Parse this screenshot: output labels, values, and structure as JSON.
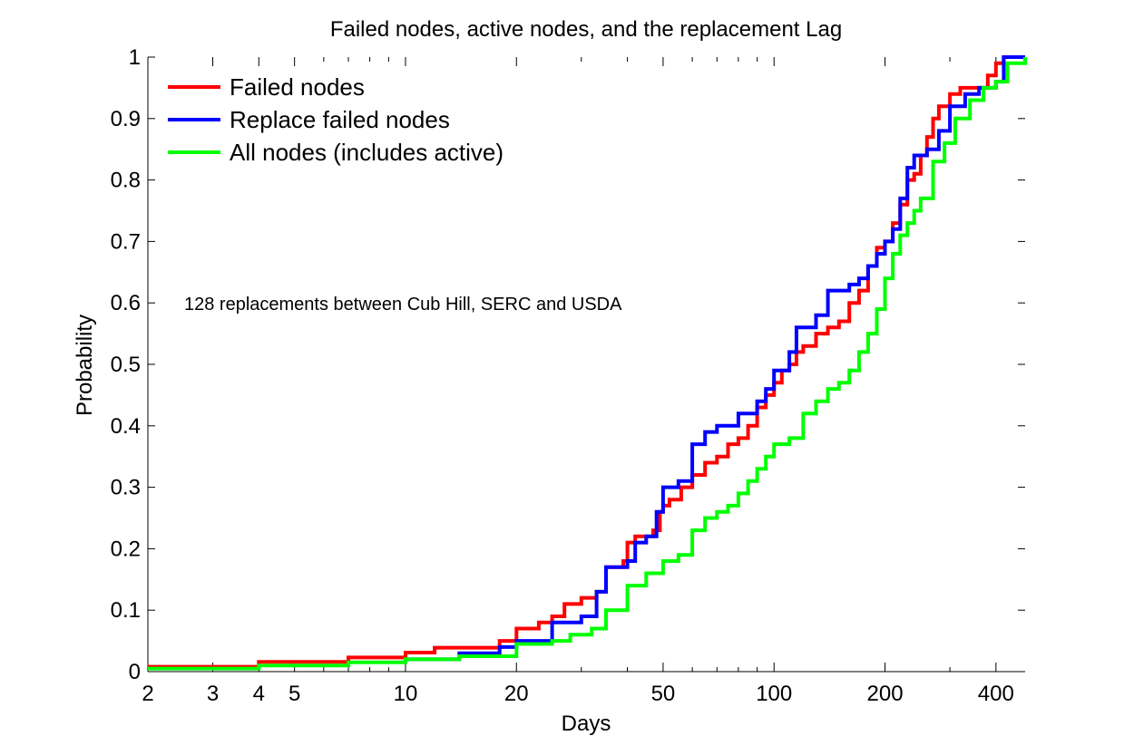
{
  "chart_data": {
    "type": "line",
    "title": "Failed nodes, active nodes, and the replacement Lag",
    "xlabel": "Days",
    "ylabel": "Probability",
    "xscale": "log",
    "xlim": [
      2,
      480
    ],
    "ylim": [
      0,
      1
    ],
    "xticks": [
      2,
      3,
      4,
      5,
      10,
      20,
      50,
      100,
      200,
      400
    ],
    "xtick_labels": [
      "2",
      "3",
      "4",
      "5",
      "10",
      "20",
      "50",
      "100",
      "200",
      "400"
    ],
    "yticks": [
      0,
      0.1,
      0.2,
      0.3,
      0.4,
      0.5,
      0.6,
      0.7,
      0.8,
      0.9,
      1
    ],
    "ytick_labels": [
      "0",
      "0.1",
      "0.2",
      "0.3",
      "0.4",
      "0.5",
      "0.6",
      "0.7",
      "0.8",
      "0.9",
      "1"
    ],
    "grid": false,
    "legend_position": "top-left",
    "annotation": "128 replacements between Cub Hill, SERC and USDA",
    "series": [
      {
        "name": "Failed nodes",
        "color": "#ff0000",
        "x": [
          2,
          4,
          7,
          10,
          12,
          18,
          20,
          23,
          25,
          27,
          30,
          33,
          35,
          39,
          40,
          42,
          47,
          49,
          50,
          52,
          56,
          60,
          65,
          70,
          75,
          80,
          85,
          90,
          95,
          100,
          105,
          110,
          115,
          120,
          130,
          140,
          150,
          160,
          170,
          180,
          190,
          200,
          210,
          220,
          230,
          240,
          250,
          260,
          270,
          280,
          300,
          320,
          350,
          380,
          400,
          420,
          480
        ],
        "y": [
          0.008,
          0.016,
          0.023,
          0.031,
          0.039,
          0.05,
          0.07,
          0.08,
          0.09,
          0.11,
          0.12,
          0.13,
          0.17,
          0.18,
          0.21,
          0.22,
          0.23,
          0.26,
          0.27,
          0.28,
          0.3,
          0.32,
          0.34,
          0.35,
          0.37,
          0.38,
          0.4,
          0.43,
          0.45,
          0.47,
          0.49,
          0.5,
          0.52,
          0.53,
          0.55,
          0.56,
          0.57,
          0.6,
          0.62,
          0.66,
          0.69,
          0.7,
          0.73,
          0.76,
          0.8,
          0.81,
          0.84,
          0.87,
          0.9,
          0.92,
          0.94,
          0.95,
          0.95,
          0.97,
          0.99,
          1.0,
          1.0
        ]
      },
      {
        "name": "Replace failed nodes",
        "color": "#0000ff",
        "x": [
          10,
          14,
          18,
          20,
          25,
          30,
          33,
          35,
          40,
          42,
          45,
          48,
          50,
          55,
          60,
          65,
          70,
          80,
          90,
          95,
          100,
          110,
          115,
          120,
          130,
          140,
          150,
          160,
          170,
          180,
          190,
          200,
          210,
          220,
          230,
          240,
          260,
          280,
          300,
          330,
          360,
          400,
          420,
          480
        ],
        "y": [
          0.02,
          0.03,
          0.04,
          0.05,
          0.08,
          0.09,
          0.13,
          0.17,
          0.18,
          0.21,
          0.22,
          0.26,
          0.3,
          0.31,
          0.37,
          0.39,
          0.4,
          0.42,
          0.44,
          0.46,
          0.49,
          0.52,
          0.56,
          0.56,
          0.58,
          0.62,
          0.62,
          0.63,
          0.64,
          0.66,
          0.68,
          0.7,
          0.72,
          0.77,
          0.82,
          0.84,
          0.85,
          0.88,
          0.92,
          0.94,
          0.95,
          0.96,
          1.0,
          1.0
        ]
      },
      {
        "name": "All nodes (includes active)",
        "color": "#00ff00",
        "x": [
          2,
          4,
          7,
          10,
          14,
          20,
          25,
          28,
          32,
          35,
          40,
          45,
          50,
          55,
          60,
          65,
          70,
          75,
          80,
          85,
          90,
          95,
          100,
          110,
          120,
          130,
          140,
          150,
          160,
          170,
          180,
          190,
          200,
          210,
          220,
          230,
          240,
          250,
          270,
          290,
          310,
          340,
          370,
          400,
          430,
          480
        ],
        "y": [
          0.005,
          0.01,
          0.015,
          0.02,
          0.025,
          0.045,
          0.05,
          0.06,
          0.07,
          0.1,
          0.14,
          0.16,
          0.18,
          0.19,
          0.23,
          0.25,
          0.26,
          0.27,
          0.29,
          0.31,
          0.33,
          0.35,
          0.37,
          0.38,
          0.42,
          0.44,
          0.46,
          0.47,
          0.49,
          0.52,
          0.55,
          0.59,
          0.64,
          0.68,
          0.71,
          0.73,
          0.75,
          0.77,
          0.83,
          0.86,
          0.9,
          0.93,
          0.95,
          0.96,
          0.99,
          1.0
        ]
      }
    ]
  }
}
